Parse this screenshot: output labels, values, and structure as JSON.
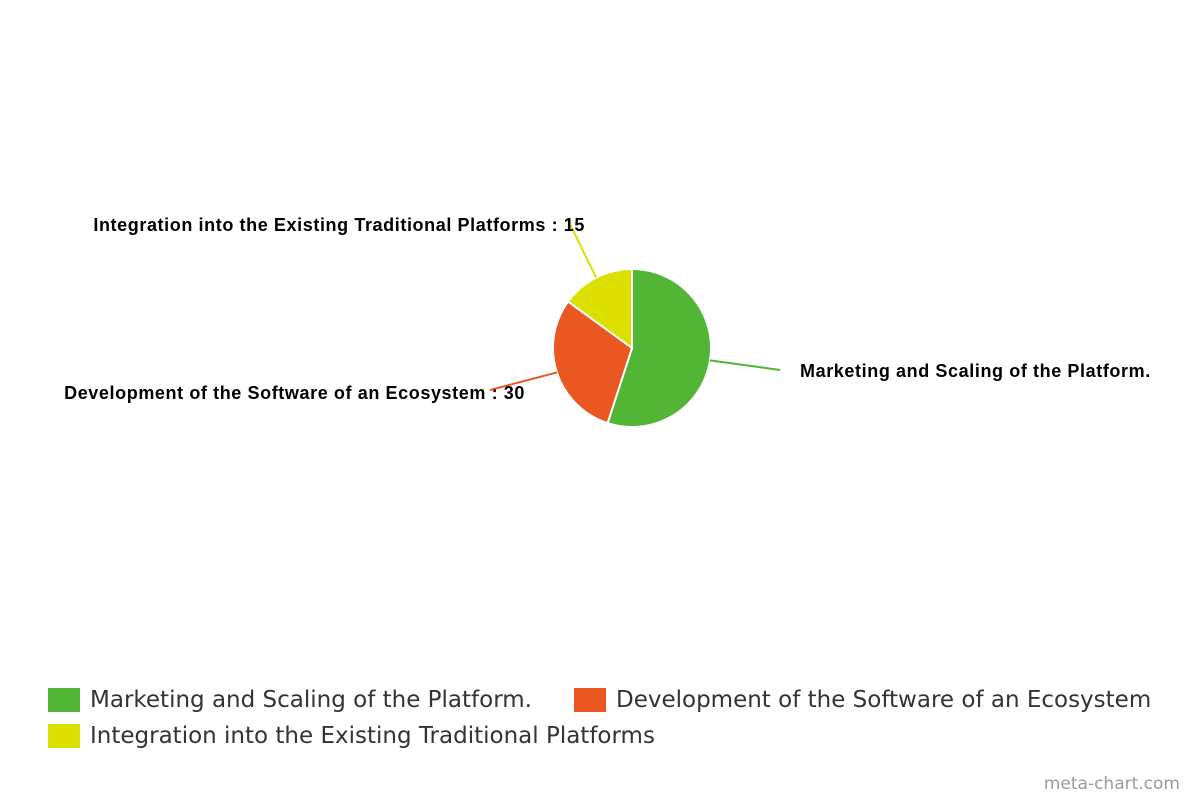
{
  "chart_data": {
    "type": "pie",
    "title": "",
    "slices": [
      {
        "label": "Marketing and Scaling of the Platform.",
        "value": 55,
        "color": "#52b535",
        "slice_label": "Marketing and Scaling of the Platform."
      },
      {
        "label": "Development of the Software of an Ecosystem",
        "value": 30,
        "color": "#ea5720",
        "slice_label": "Development of the Software of an Ecosystem : 30"
      },
      {
        "label": "Integration into the Existing Traditional Platforms",
        "value": 15,
        "color": "#dcdf00",
        "slice_label": "Integration into the Existing Traditional Platforms : 15"
      }
    ],
    "legend_position": "bottom-left"
  },
  "legend": {
    "items": [
      {
        "label": "Marketing and Scaling of the Platform.",
        "color": "#52b535"
      },
      {
        "label": "Development of the Software of an Ecosystem",
        "color": "#ea5720"
      },
      {
        "label": "Integration into the Existing Traditional Platforms",
        "color": "#dcdf00"
      }
    ]
  },
  "watermark": "meta-chart.com"
}
